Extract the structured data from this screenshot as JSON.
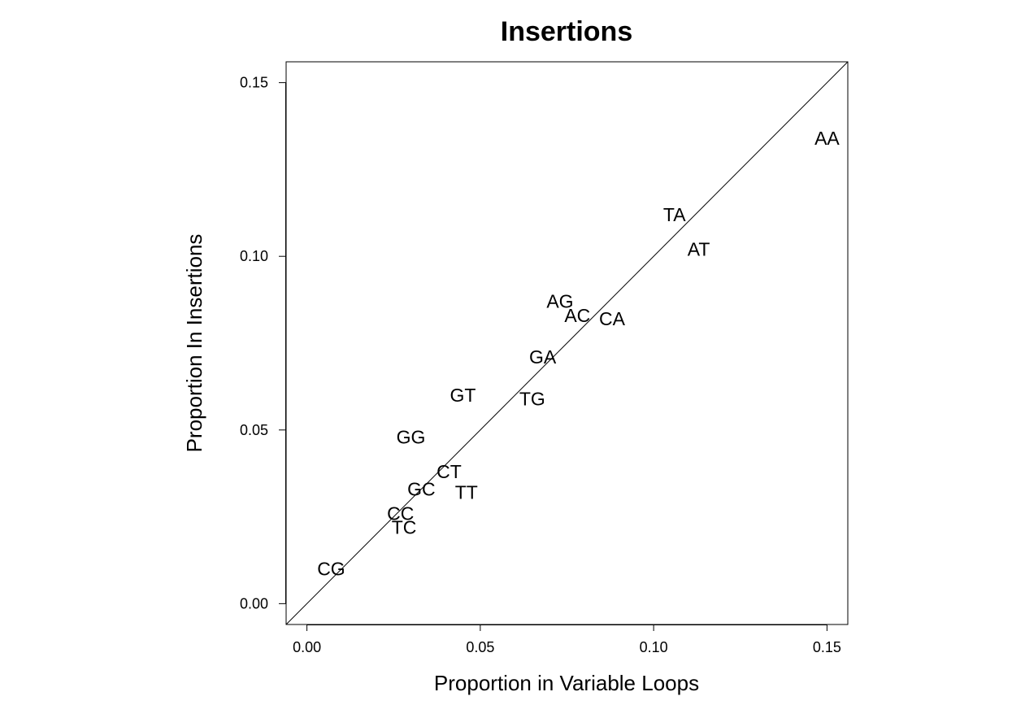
{
  "chart_data": {
    "type": "scatter",
    "title": "Insertions",
    "xlabel": "Proportion in Variable Loops",
    "ylabel": "Proportion In Insertions",
    "xlim": [
      -0.006,
      0.156
    ],
    "ylim": [
      -0.006,
      0.156
    ],
    "xticks": [
      0.0,
      0.05,
      0.1,
      0.15
    ],
    "yticks": [
      0.0,
      0.05,
      0.1,
      0.15
    ],
    "xtick_labels": [
      "0.00",
      "0.05",
      "0.10",
      "0.15"
    ],
    "ytick_labels": [
      "0.00",
      "0.05",
      "0.10",
      "0.15"
    ],
    "grid": false,
    "reference_line": "y = x",
    "points": [
      {
        "label": "AA",
        "x": 0.15,
        "y": 0.134
      },
      {
        "label": "TA",
        "x": 0.106,
        "y": 0.112
      },
      {
        "label": "AT",
        "x": 0.113,
        "y": 0.102
      },
      {
        "label": "AG",
        "x": 0.073,
        "y": 0.087
      },
      {
        "label": "AC",
        "x": 0.078,
        "y": 0.083
      },
      {
        "label": "CA",
        "x": 0.088,
        "y": 0.082
      },
      {
        "label": "GA",
        "x": 0.068,
        "y": 0.071
      },
      {
        "label": "GT",
        "x": 0.045,
        "y": 0.06
      },
      {
        "label": "TG",
        "x": 0.065,
        "y": 0.059
      },
      {
        "label": "GG",
        "x": 0.03,
        "y": 0.048
      },
      {
        "label": "CT",
        "x": 0.041,
        "y": 0.038
      },
      {
        "label": "GC",
        "x": 0.033,
        "y": 0.033
      },
      {
        "label": "TT",
        "x": 0.046,
        "y": 0.032
      },
      {
        "label": "CC",
        "x": 0.027,
        "y": 0.026
      },
      {
        "label": "TC",
        "x": 0.028,
        "y": 0.022
      },
      {
        "label": "CG",
        "x": 0.007,
        "y": 0.01
      }
    ]
  }
}
